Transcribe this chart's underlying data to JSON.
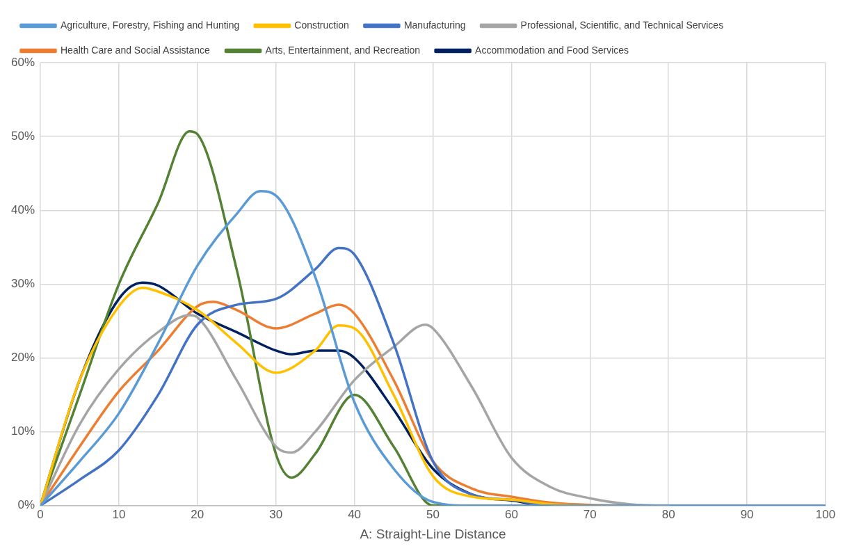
{
  "chart_data": {
    "type": "line",
    "xlabel": "A: Straight-Line Distance",
    "xlim": [
      0,
      100
    ],
    "xticks": [
      0,
      10,
      20,
      30,
      40,
      50,
      60,
      70,
      80,
      90,
      100
    ],
    "ylim": [
      0,
      60
    ],
    "yticks": [
      {
        "value": 0,
        "label": "0%"
      },
      {
        "value": 10,
        "label": "10%"
      },
      {
        "value": 20,
        "label": "20%"
      },
      {
        "value": 30,
        "label": "30%"
      },
      {
        "value": 40,
        "label": "40%"
      },
      {
        "value": 50,
        "label": "50%"
      },
      {
        "value": 60,
        "label": "60%"
      }
    ],
    "grid": true,
    "legend": "top",
    "marker": "none",
    "line_style": "solid",
    "series": [
      {
        "name": "Agriculture, Forestry, Fishing and Hunting",
        "color": "#5b9bd5",
        "x": [
          0,
          5,
          10,
          15,
          20,
          25,
          28,
          30,
          35,
          40,
          45,
          50,
          55,
          60,
          70,
          80,
          90,
          100
        ],
        "values": [
          0,
          6,
          12.5,
          22,
          32.5,
          39.5,
          42.6,
          42,
          31,
          14,
          5,
          0.5,
          0,
          0,
          0,
          0,
          0,
          0
        ]
      },
      {
        "name": "Construction",
        "color": "#ffc000",
        "x": [
          0,
          5,
          10,
          13,
          15,
          20,
          25,
          30,
          35,
          38,
          40,
          45,
          50,
          55,
          60,
          65,
          70,
          80
        ],
        "values": [
          0,
          17,
          27,
          29.5,
          29,
          26.5,
          22,
          18,
          21,
          24.4,
          24,
          15,
          4,
          1.2,
          0.8,
          0.2,
          0,
          0
        ]
      },
      {
        "name": "Manufacturing",
        "color": "#4472c4",
        "x": [
          0,
          5,
          10,
          15,
          20,
          25,
          30,
          35,
          38,
          40,
          45,
          50,
          55,
          60,
          65,
          70,
          80,
          90,
          100
        ],
        "values": [
          0,
          3.5,
          7.5,
          15,
          24.5,
          27.2,
          28,
          32,
          34.9,
          34,
          22,
          6,
          1.5,
          0.8,
          0,
          0,
          0,
          0,
          0
        ]
      },
      {
        "name": "Professional, Scientific, and Technical Services",
        "color": "#a5a5a5",
        "x": [
          0,
          5,
          10,
          15,
          19,
          20,
          25,
          30,
          32,
          35,
          40,
          45,
          49,
          50,
          55,
          60,
          65,
          70,
          75,
          80,
          90,
          100
        ],
        "values": [
          0,
          11,
          18.5,
          23.5,
          25.8,
          25.5,
          17,
          8,
          7.2,
          10,
          17,
          21.5,
          24.5,
          24,
          16,
          6.5,
          2.5,
          1,
          0.2,
          0,
          0,
          0
        ]
      },
      {
        "name": "Health Care and Social Assistance",
        "color": "#ed7d31",
        "x": [
          0,
          5,
          10,
          15,
          20,
          22,
          25,
          30,
          35,
          38,
          40,
          45,
          50,
          55,
          60,
          65,
          70,
          80
        ],
        "values": [
          0,
          8,
          15.5,
          21,
          27,
          27.6,
          26.5,
          24,
          26,
          27.2,
          26,
          17,
          6,
          2.3,
          1.2,
          0.4,
          0.1,
          0
        ]
      },
      {
        "name": "Arts, Entertainment, and Recreation",
        "color": "#548235",
        "x": [
          0,
          5,
          10,
          15,
          19,
          20,
          25,
          30,
          32,
          35,
          40,
          45,
          50,
          60,
          70,
          80,
          90,
          100
        ],
        "values": [
          0,
          15,
          30,
          41,
          50.7,
          50.3,
          32,
          7,
          3.8,
          7,
          15,
          8,
          0,
          0,
          0,
          0,
          0,
          0
        ]
      },
      {
        "name": "Accommodation and Food Services",
        "color": "#002060",
        "x": [
          0,
          5,
          10,
          13,
          15,
          20,
          25,
          30,
          32,
          35,
          38,
          40,
          45,
          50,
          55,
          60,
          65,
          70,
          80,
          90,
          100
        ],
        "values": [
          0,
          17,
          28,
          30.2,
          29.8,
          26,
          23.5,
          21,
          20.5,
          21,
          21,
          20,
          13,
          5,
          1.5,
          0.7,
          0,
          0,
          0,
          0,
          0
        ]
      }
    ]
  }
}
